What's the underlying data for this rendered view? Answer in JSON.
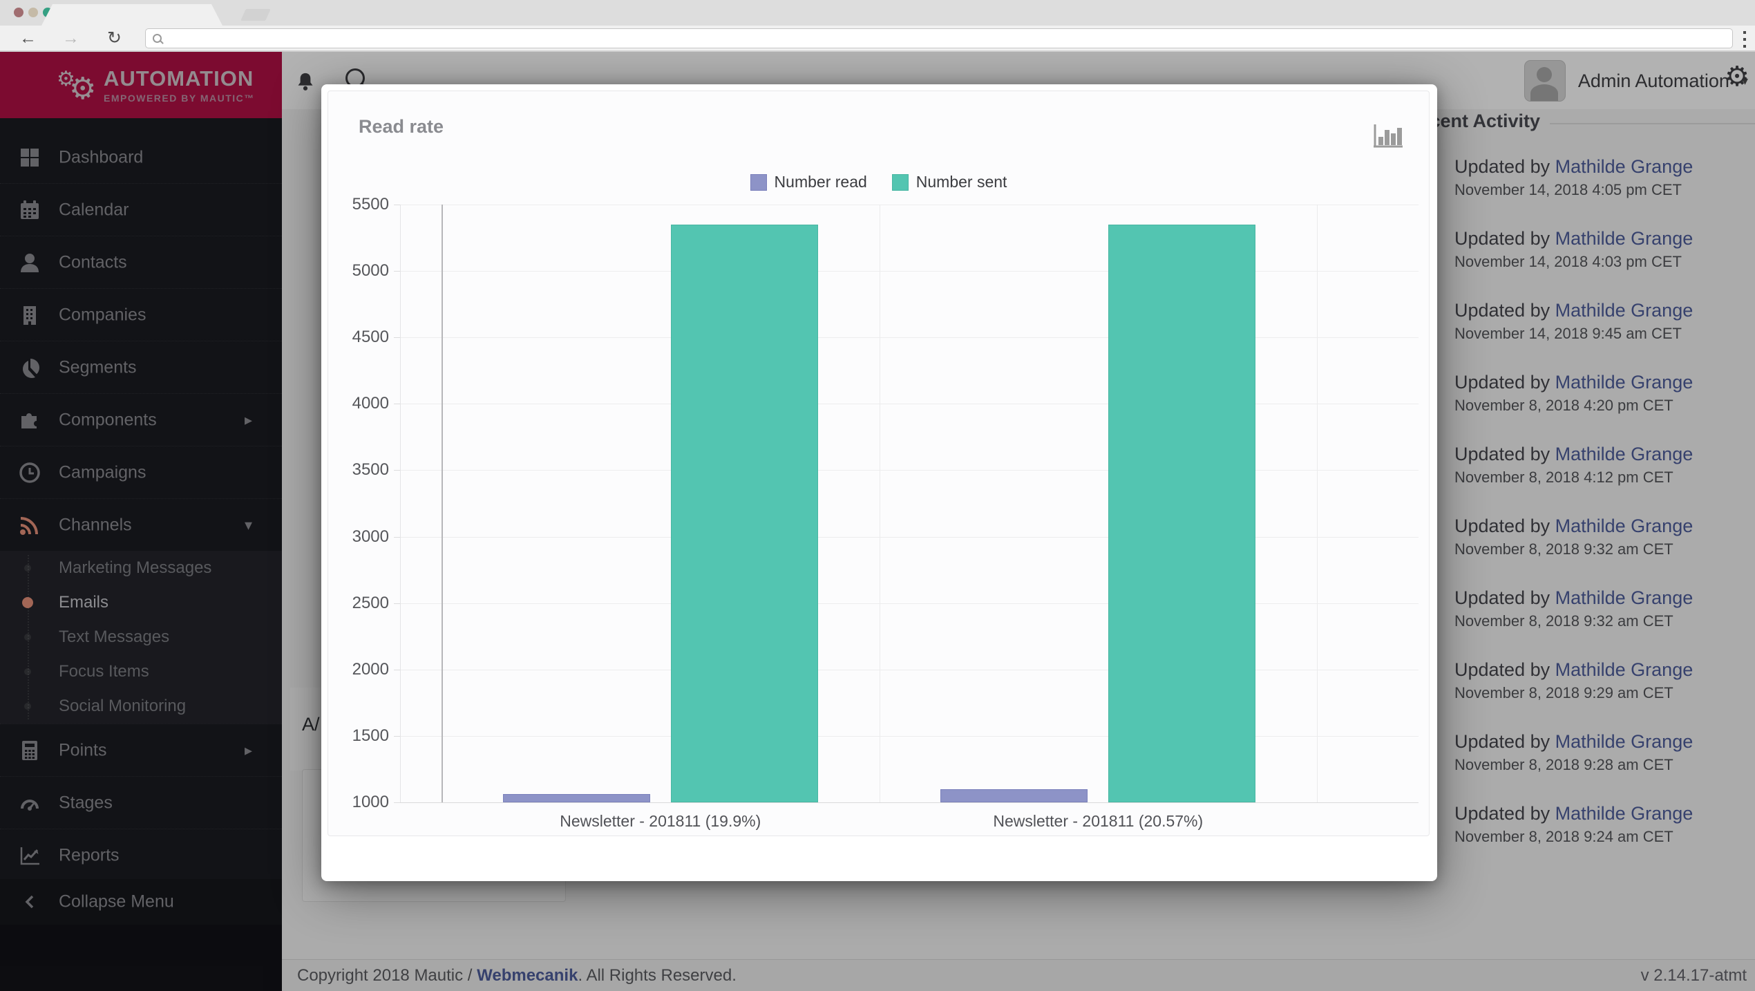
{
  "browser": {
    "address_value": "",
    "tab_title": ""
  },
  "logo": {
    "title": "AUTOMATION",
    "subtitle": "EMPOWERED BY MAUTIC™"
  },
  "sidebar": {
    "items": [
      {
        "label": "Dashboard",
        "icon": "dashboard-icon"
      },
      {
        "label": "Calendar",
        "icon": "calendar-icon"
      },
      {
        "label": "Contacts",
        "icon": "contacts-icon"
      },
      {
        "label": "Companies",
        "icon": "companies-icon"
      },
      {
        "label": "Segments",
        "icon": "segments-icon"
      },
      {
        "label": "Components",
        "icon": "components-icon",
        "caret": "right"
      },
      {
        "label": "Campaigns",
        "icon": "campaigns-icon"
      },
      {
        "label": "Channels",
        "icon": "channels-icon",
        "caret": "down",
        "submenu": [
          {
            "label": "Marketing Messages",
            "active": false
          },
          {
            "label": "Emails",
            "active": true
          },
          {
            "label": "Text Messages",
            "active": false
          },
          {
            "label": "Focus Items",
            "active": false
          },
          {
            "label": "Social Monitoring",
            "active": false
          }
        ]
      },
      {
        "label": "Points",
        "icon": "points-icon",
        "caret": "right"
      },
      {
        "label": "Stages",
        "icon": "stages-icon"
      },
      {
        "label": "Reports",
        "icon": "reports-icon"
      }
    ],
    "collapse_label": "Collapse Menu"
  },
  "header": {
    "user_name": "Admin Automation"
  },
  "background_page": {
    "partial_heading": "A/"
  },
  "activity": {
    "heading": "Recent Activity",
    "entries": [
      {
        "action": "Updated by",
        "user": "Mathilde Grange",
        "date": "November 14, 2018 4:05 pm CET"
      },
      {
        "action": "Updated by",
        "user": "Mathilde Grange",
        "date": "November 14, 2018 4:03 pm CET"
      },
      {
        "action": "Updated by",
        "user": "Mathilde Grange",
        "date": "November 14, 2018 9:45 am CET"
      },
      {
        "action": "Updated by",
        "user": "Mathilde Grange",
        "date": "November 8, 2018 4:20 pm CET"
      },
      {
        "action": "Updated by",
        "user": "Mathilde Grange",
        "date": "November 8, 2018 4:12 pm CET"
      },
      {
        "action": "Updated by",
        "user": "Mathilde Grange",
        "date": "November 8, 2018 9:32 am CET"
      },
      {
        "action": "Updated by",
        "user": "Mathilde Grange",
        "date": "November 8, 2018 9:32 am CET"
      },
      {
        "action": "Updated by",
        "user": "Mathilde Grange",
        "date": "November 8, 2018 9:29 am CET"
      },
      {
        "action": "Updated by",
        "user": "Mathilde Grange",
        "date": "November 8, 2018 9:28 am CET"
      },
      {
        "action": "Updated by",
        "user": "Mathilde Grange",
        "date": "November 8, 2018 9:24 am CET"
      }
    ]
  },
  "modal": {
    "title": "Read rate",
    "chart_type_icon": "bar-chart-icon"
  },
  "chart_data": {
    "type": "bar",
    "title": "Read rate",
    "categories": [
      "Newsletter - 201811 (19.9%)",
      "Newsletter - 201811 (20.57%)"
    ],
    "series": [
      {
        "name": "Number read",
        "color": "#8d93c7",
        "border": "#7a80bb",
        "values": [
          1065,
          1100
        ]
      },
      {
        "name": "Number sent",
        "color": "#53c5b1",
        "border": "#48b6a2",
        "values": [
          5350,
          5350
        ]
      }
    ],
    "ylim": [
      1000,
      5500
    ],
    "yticks": [
      1000,
      1500,
      2000,
      2500,
      3000,
      3500,
      4000,
      4500,
      5000,
      5500
    ],
    "grid": true,
    "legend_position": "top"
  },
  "footer": {
    "copyright_prefix": "Copyright 2018 Mautic / ",
    "copyright_link": "Webmecanik",
    "copyright_suffix": ". All Rights Reserved.",
    "version": "v 2.14.17-atmt"
  },
  "colors": {
    "brand_maroon": "#b21146",
    "link_blue": "#4e5d9d",
    "accent_orange": "#e8927c",
    "series_read": "#8d93c7",
    "series_sent": "#53c5b1"
  }
}
